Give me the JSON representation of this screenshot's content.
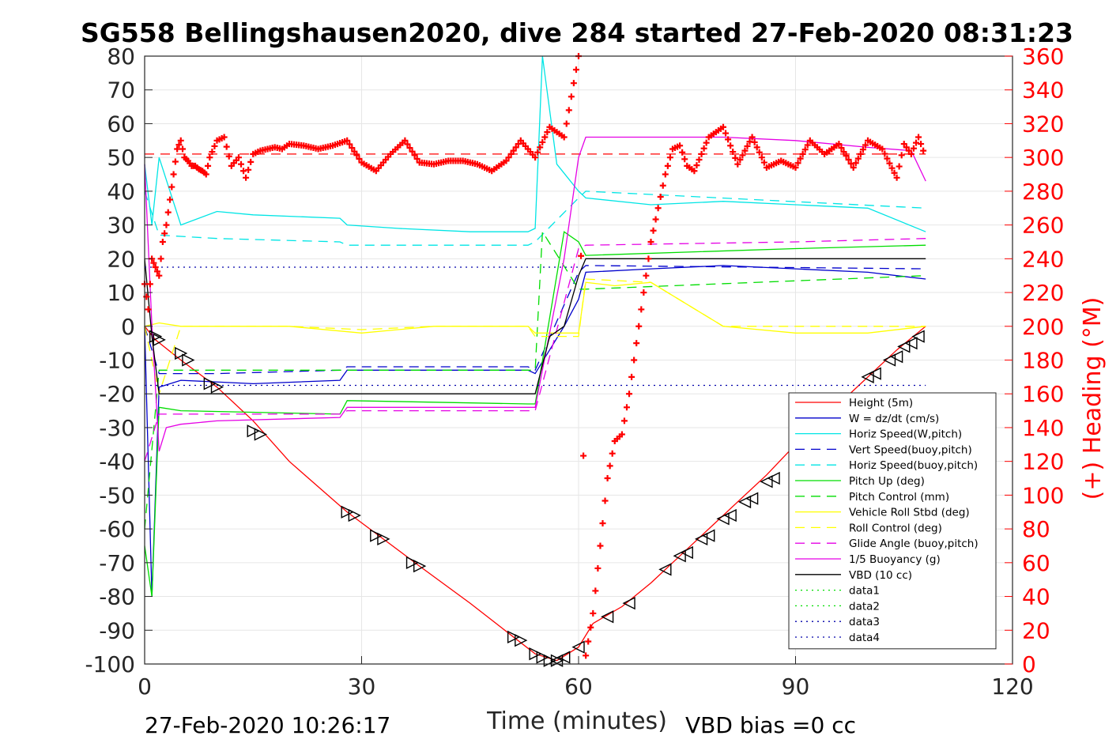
{
  "chart_data": {
    "type": "line",
    "title": "SG558 Bellingshausen2020, dive 284 started 27-Feb-2020 08:31:23",
    "xlabel": "Time (minutes)",
    "ylabel": "",
    "y2label": "(+) Heading (°M)",
    "xlim": [
      0,
      120
    ],
    "ylim": [
      -100,
      80
    ],
    "y2lim": [
      0,
      360
    ],
    "xticks": [
      "0",
      "30",
      "60",
      "90",
      "120"
    ],
    "yticks": [
      "-100",
      "-90",
      "-80",
      "-70",
      "-60",
      "-50",
      "-40",
      "-30",
      "-20",
      "-10",
      "0",
      "10",
      "20",
      "30",
      "40",
      "50",
      "60",
      "70",
      "80"
    ],
    "y2ticks": [
      "0",
      "20",
      "40",
      "60",
      "80",
      "100",
      "120",
      "140",
      "160",
      "180",
      "200",
      "220",
      "240",
      "260",
      "280",
      "300",
      "320",
      "340",
      "360"
    ],
    "grid": true,
    "legend_position": "lower-right",
    "footer_left": "27-Feb-2020 10:26:17",
    "footer_right": "VBD bias =0 cc",
    "series": [
      {
        "name": "Height (5m)",
        "color": "#ff0000",
        "style": "solid",
        "x": [
          0,
          1.5,
          5,
          10,
          15,
          20,
          28,
          33,
          38,
          45,
          51,
          54,
          57,
          60,
          62,
          66,
          70,
          74,
          78,
          82,
          86,
          90,
          95,
          100,
          104,
          108
        ],
        "y": [
          0,
          -4,
          -10,
          -18,
          -28,
          -40,
          -55,
          -63,
          -71,
          -82,
          -92,
          -97,
          -99,
          -95,
          -88,
          -83,
          -76,
          -68,
          -60,
          -52,
          -44,
          -35,
          -25,
          -15,
          -7,
          0
        ]
      },
      {
        "name": "W = dz/dt (cm/s)",
        "color": "#0000cc",
        "style": "solid",
        "x": [
          0,
          1,
          2,
          5,
          15,
          27,
          28,
          35,
          45,
          53,
          54,
          58,
          60,
          61,
          70,
          80,
          90,
          100,
          108
        ],
        "y": [
          0,
          -80,
          -18,
          -16,
          -17,
          -16,
          -13,
          -13,
          -13,
          -13,
          -14,
          0,
          8,
          16,
          17,
          18,
          17,
          16,
          14
        ]
      },
      {
        "name": "Horiz Speed(W,pitch)",
        "color": "#00e5e5",
        "style": "solid",
        "x": [
          0,
          1,
          2,
          5,
          10,
          15,
          27,
          28,
          35,
          45,
          53,
          54,
          55,
          57,
          60,
          61,
          70,
          80,
          90,
          100,
          108
        ],
        "y": [
          48,
          30,
          50,
          30,
          34,
          33,
          32,
          30,
          29,
          28,
          28,
          29,
          80,
          48,
          40,
          38,
          36,
          37,
          36,
          35,
          28
        ]
      },
      {
        "name": "Vert Speed(buoy,pitch)",
        "color": "#0000cc",
        "style": "dashed",
        "x": [
          0,
          2,
          10,
          27,
          28,
          53,
          54,
          60,
          61,
          108
        ],
        "y": [
          0,
          -14,
          -14,
          -13,
          -12,
          -12,
          -13,
          16,
          18,
          17
        ]
      },
      {
        "name": "Horiz Speed(buoy,pitch)",
        "color": "#00e5e5",
        "style": "dashed",
        "x": [
          0,
          2,
          10,
          27,
          28,
          53,
          54,
          60,
          61,
          108
        ],
        "y": [
          40,
          27,
          26,
          25,
          24,
          24,
          25,
          38,
          40,
          35
        ]
      },
      {
        "name": "Pitch Up (deg)",
        "color": "#00dd00",
        "style": "solid",
        "x": [
          0,
          1,
          2,
          5,
          27,
          28,
          53,
          54,
          58,
          60,
          61,
          90,
          108
        ],
        "y": [
          -65,
          -80,
          -24,
          -25,
          -26,
          -22,
          -23,
          -23,
          28,
          25,
          21,
          23,
          24
        ]
      },
      {
        "name": "Pitch Control (mm)",
        "color": "#00dd00",
        "style": "dashed",
        "x": [
          0,
          2,
          10,
          54,
          55,
          60,
          61,
          108
        ],
        "y": [
          -60,
          -13,
          -13,
          -13,
          28,
          11,
          11,
          15
        ]
      },
      {
        "name": "Vehicle Roll Stbd (deg)",
        "color": "#ffff00",
        "style": "solid",
        "x": [
          0,
          2,
          5,
          10,
          20,
          30,
          40,
          50,
          53,
          54,
          60,
          61,
          65,
          70,
          80,
          90,
          100,
          108
        ],
        "y": [
          0,
          1,
          0,
          0,
          0,
          -2,
          0,
          0,
          0,
          -2,
          -2,
          13,
          12,
          13,
          0,
          -2,
          -2,
          0
        ]
      },
      {
        "name": "Roll Control (deg)",
        "color": "#ffff00",
        "style": "dashed",
        "x": [
          0,
          2,
          5,
          10,
          20,
          30,
          40,
          50,
          53,
          54,
          60,
          61,
          70,
          80,
          90,
          100,
          108
        ],
        "y": [
          0,
          -20,
          0,
          0,
          0,
          -1,
          0,
          0,
          0,
          -3,
          -3,
          14,
          13,
          0,
          0,
          0,
          0
        ]
      },
      {
        "name": "Glide Angle (buoy,pitch)",
        "color": "#e500e5",
        "style": "dashed",
        "x": [
          0,
          2,
          10,
          27,
          28,
          53,
          54,
          60,
          61,
          90,
          108
        ],
        "y": [
          -40,
          -26,
          -26,
          -26,
          -25,
          -25,
          -25,
          23,
          24,
          25,
          26
        ]
      },
      {
        "name": "1/5 Buoyancy (g)",
        "color": "#e500e5",
        "style": "solid",
        "x": [
          0,
          1,
          2,
          3,
          5,
          10,
          27,
          28,
          53,
          54,
          58,
          60,
          61,
          70,
          80,
          90,
          100,
          106,
          108
        ],
        "y": [
          48,
          0,
          -37,
          -30,
          -29,
          -28,
          -27,
          -24,
          -24,
          -24,
          20,
          50,
          56,
          56,
          56,
          55,
          53,
          52,
          43
        ]
      },
      {
        "name": "VBD (10 cc)",
        "color": "#000000",
        "style": "solid",
        "x": [
          0,
          1,
          2,
          54,
          56,
          58,
          60,
          61,
          108
        ],
        "y": [
          20,
          -3,
          -20,
          -20,
          -3,
          0,
          15,
          20,
          20
        ]
      },
      {
        "name": "data1",
        "color": "#00dd00",
        "style": "dotted",
        "x": [],
        "y": []
      },
      {
        "name": "data2",
        "color": "#00dd00",
        "style": "dotted",
        "x": [],
        "y": []
      },
      {
        "name": "data3",
        "color": "#0000aa",
        "style": "dotted",
        "x": [
          0,
          60
        ],
        "y": [
          17.5,
          17.5
        ]
      },
      {
        "name": "data4",
        "color": "#0000aa",
        "style": "dotted",
        "x": [
          0,
          108
        ],
        "y": [
          -17.5,
          -17.5
        ]
      }
    ],
    "heading_series": {
      "axis": "right",
      "color": "#ff0000",
      "marker": "+",
      "x": [
        0,
        0.5,
        1,
        1.5,
        2,
        2.5,
        3,
        3.5,
        4,
        4.5,
        5,
        5.5,
        6,
        6.5,
        7,
        7.5,
        8,
        8.5,
        9,
        10,
        11,
        12,
        13,
        14,
        15,
        16,
        17,
        18,
        19,
        20,
        22,
        24,
        26,
        28,
        30,
        32,
        34,
        36,
        38,
        40,
        42,
        44,
        46,
        48,
        50,
        52,
        54,
        56,
        58,
        60,
        61,
        62,
        63,
        64,
        65,
        66,
        67,
        68,
        69,
        70,
        71,
        72,
        73,
        74,
        75,
        76,
        78,
        80,
        82,
        84,
        86,
        88,
        90,
        92,
        94,
        96,
        98,
        100,
        102,
        104,
        105,
        106,
        107,
        108
      ],
      "y": [
        225,
        210,
        240,
        235,
        230,
        250,
        260,
        275,
        290,
        305,
        310,
        300,
        298,
        295,
        295,
        293,
        292,
        290,
        300,
        310,
        312,
        295,
        300,
        288,
        302,
        304,
        305,
        306,
        305,
        308,
        307,
        305,
        307,
        310,
        297,
        292,
        302,
        310,
        297,
        296,
        298,
        298,
        296,
        292,
        298,
        310,
        300,
        318,
        312,
        360,
        5,
        30,
        70,
        110,
        132,
        136,
        160,
        190,
        220,
        250,
        270,
        290,
        305,
        307,
        295,
        292,
        312,
        318,
        296,
        312,
        294,
        298,
        294,
        310,
        302,
        308,
        294,
        310,
        305,
        288,
        308,
        302,
        312,
        300
      ]
    },
    "markers_descent": {
      "symbol": "triangle-right",
      "x": [
        1.5,
        2,
        5,
        6,
        9,
        10,
        15,
        16,
        28,
        29,
        32,
        33,
        37,
        38,
        51,
        52,
        54,
        55,
        56,
        57
      ],
      "y": [
        -3,
        -4,
        -8,
        -10,
        -17,
        -18,
        -31,
        -32,
        -55,
        -56,
        -62,
        -63,
        -70,
        -71,
        -92,
        -93,
        -97,
        -98,
        -99,
        -99
      ]
    },
    "markers_ascent": {
      "symbol": "triangle-left",
      "x": [
        57,
        58,
        60,
        64,
        67,
        72,
        74,
        75,
        77,
        78,
        80,
        81,
        83,
        84,
        86,
        87,
        100,
        101,
        103,
        104,
        105,
        106,
        107
      ],
      "y": [
        -99,
        -98,
        -95,
        -86,
        -82,
        -72,
        -68,
        -67,
        -63,
        -62,
        -57,
        -56,
        -52,
        -51,
        -46,
        -45,
        -15,
        -14,
        -10,
        -9,
        -6,
        -5,
        -3
      ]
    },
    "reference_lines": [
      {
        "axis": "right",
        "y": 302,
        "color": "#ff0000",
        "style": "dashed",
        "x": [
          0,
          108
        ]
      }
    ],
    "legend_entries": [
      "Height (5m)",
      "W = dz/dt (cm/s)",
      "Horiz Speed(W,pitch)",
      "Vert Speed(buoy,pitch)",
      "Horiz Speed(buoy,pitch)",
      "Pitch Up (deg)",
      "Pitch Control (mm)",
      "Vehicle Roll Stbd (deg)",
      "Roll Control (deg)",
      "Glide Angle (buoy,pitch)",
      "1/5 Buoyancy (g)",
      "VBD (10 cc)",
      "data1",
      "data2",
      "data3",
      "data4"
    ]
  }
}
